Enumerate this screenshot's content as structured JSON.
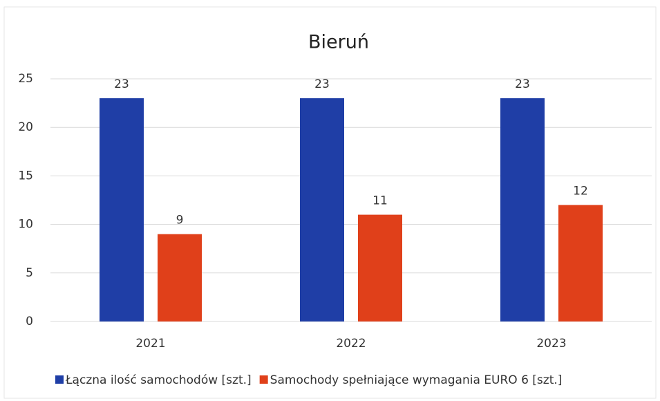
{
  "chart_data": {
    "type": "bar",
    "title": "Bieruń",
    "categories": [
      "2021",
      "2022",
      "2023"
    ],
    "series": [
      {
        "name": "Łączna ilość samochodów [szt.]",
        "color": "#1f3ea6",
        "values": [
          23,
          23,
          23
        ]
      },
      {
        "name": "Samochody spełniające wymagania EURO 6 [szt.]",
        "color": "#e0401a",
        "values": [
          9,
          11,
          12
        ]
      }
    ],
    "ylim": [
      0,
      25
    ],
    "yticks": [
      0,
      5,
      10,
      15,
      20,
      25
    ],
    "grid": true,
    "legend": "bottom"
  }
}
